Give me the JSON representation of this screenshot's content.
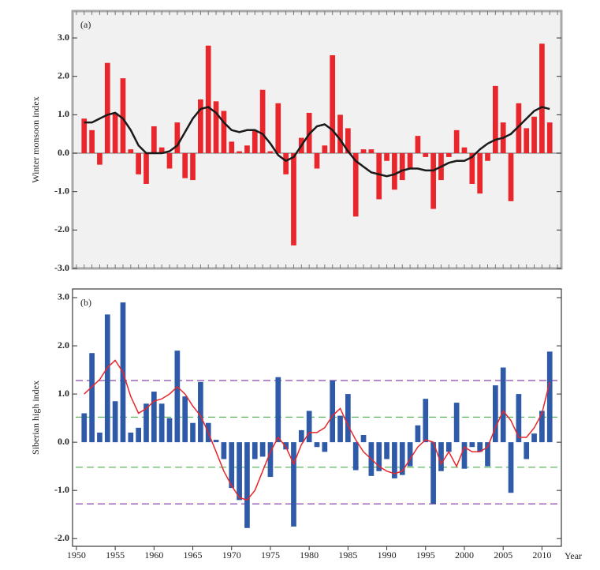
{
  "chart_data": [
    {
      "type": "bar",
      "panel_label": "(a)",
      "ylabel": "Winter monsoon index",
      "x": [
        1951,
        1952,
        1953,
        1954,
        1955,
        1956,
        1957,
        1958,
        1959,
        1960,
        1961,
        1962,
        1963,
        1964,
        1965,
        1966,
        1967,
        1968,
        1969,
        1970,
        1971,
        1972,
        1973,
        1974,
        1975,
        1976,
        1977,
        1978,
        1979,
        1980,
        1981,
        1982,
        1983,
        1984,
        1985,
        1986,
        1987,
        1988,
        1989,
        1990,
        1991,
        1992,
        1993,
        1994,
        1995,
        1996,
        1997,
        1998,
        1999,
        2000,
        2001,
        2002,
        2003,
        2004,
        2005,
        2006,
        2007,
        2008,
        2009,
        2010,
        2011
      ],
      "series": [
        {
          "kind": "bar",
          "color": "#e8262b",
          "values": [
            0.9,
            0.6,
            -0.3,
            2.35,
            1.05,
            1.95,
            0.1,
            -0.55,
            -0.8,
            0.7,
            0.15,
            -0.4,
            0.8,
            -0.65,
            -0.7,
            1.4,
            2.8,
            1.35,
            1.1,
            0.3,
            0.05,
            0.2,
            0.6,
            1.65,
            0.05,
            1.3,
            -0.55,
            -2.4,
            0.4,
            1.05,
            -0.4,
            0.2,
            2.55,
            1.0,
            0.65,
            -1.65,
            0.1,
            0.1,
            -1.2,
            -0.2,
            -0.95,
            -0.7,
            -0.4,
            0.45,
            -0.1,
            -1.45,
            -0.7,
            -0.1,
            0.6,
            0.15,
            -0.8,
            -1.05,
            -0.2,
            1.75,
            0.8,
            -1.25,
            1.3,
            0.65,
            0.95,
            2.85,
            0.8
          ]
        },
        {
          "kind": "line",
          "color": "#1a1a1a",
          "values": [
            0.8,
            0.8,
            0.9,
            1.0,
            1.05,
            0.9,
            0.6,
            0.2,
            0.0,
            0.0,
            0.0,
            0.05,
            0.2,
            0.55,
            0.9,
            1.15,
            1.2,
            1.05,
            0.8,
            0.6,
            0.55,
            0.6,
            0.6,
            0.5,
            0.25,
            -0.05,
            -0.2,
            -0.1,
            0.2,
            0.5,
            0.7,
            0.75,
            0.6,
            0.35,
            0.05,
            -0.2,
            -0.35,
            -0.5,
            -0.55,
            -0.6,
            -0.55,
            -0.45,
            -0.4,
            -0.4,
            -0.45,
            -0.45,
            -0.35,
            -0.25,
            -0.2,
            -0.2,
            -0.1,
            0.1,
            0.25,
            0.35,
            0.4,
            0.5,
            0.7,
            0.9,
            1.1,
            1.2,
            1.15
          ]
        }
      ],
      "xlim": [
        1949.5,
        2012.5
      ],
      "ylim": [
        -3.0,
        3.7
      ],
      "yticks": [
        {
          "value": 3,
          "label": "3.0"
        },
        {
          "value": 2,
          "label": "2.0"
        },
        {
          "value": 1,
          "label": "1.0"
        },
        {
          "value": 0,
          "label": "0.0"
        },
        {
          "value": -1,
          "label": "-1.0"
        },
        {
          "value": -2,
          "label": "-2.0"
        },
        {
          "value": -3,
          "label": "-3.0"
        }
      ]
    },
    {
      "type": "bar",
      "panel_label": "(b)",
      "ylabel": "Siberian high index",
      "xlabel": "Year",
      "x": [
        1951,
        1952,
        1953,
        1954,
        1955,
        1956,
        1957,
        1958,
        1959,
        1960,
        1961,
        1962,
        1963,
        1964,
        1965,
        1966,
        1967,
        1968,
        1969,
        1970,
        1971,
        1972,
        1973,
        1974,
        1975,
        1976,
        1977,
        1978,
        1979,
        1980,
        1981,
        1982,
        1983,
        1984,
        1985,
        1986,
        1987,
        1988,
        1989,
        1990,
        1991,
        1992,
        1993,
        1994,
        1995,
        1996,
        1997,
        1998,
        1999,
        2000,
        2001,
        2002,
        2003,
        2004,
        2005,
        2006,
        2007,
        2008,
        2009,
        2010,
        2011
      ],
      "series": [
        {
          "kind": "bar",
          "color": "#2f5aa8",
          "values": [
            0.6,
            1.85,
            0.2,
            2.65,
            0.85,
            2.9,
            0.2,
            0.3,
            0.8,
            1.05,
            0.8,
            0.5,
            1.9,
            0.95,
            0.4,
            1.25,
            0.4,
            0.05,
            -0.35,
            -0.95,
            -1.2,
            -1.78,
            -0.35,
            -0.3,
            -0.72,
            1.35,
            -0.15,
            -1.75,
            0.25,
            0.65,
            -0.1,
            -0.2,
            1.28,
            0.55,
            1.0,
            -0.58,
            0.15,
            -0.7,
            -0.6,
            -0.35,
            -0.75,
            -0.68,
            -0.5,
            0.35,
            0.9,
            -1.28,
            -0.6,
            -0.2,
            0.82,
            -0.55,
            -0.1,
            -0.2,
            -0.5,
            1.18,
            1.55,
            -1.05,
            1.0,
            -0.35,
            0.18,
            0.65,
            1.88
          ]
        },
        {
          "kind": "line",
          "color": "#e8262b",
          "values": [
            1.0,
            1.15,
            1.3,
            1.55,
            1.7,
            1.45,
            0.95,
            0.6,
            0.7,
            0.85,
            0.9,
            1.0,
            1.15,
            1.0,
            0.75,
            0.55,
            0.2,
            -0.2,
            -0.6,
            -0.9,
            -1.15,
            -1.2,
            -1.0,
            -0.6,
            -0.2,
            0.1,
            -0.1,
            -0.45,
            -0.05,
            0.2,
            0.2,
            0.3,
            0.55,
            0.7,
            0.35,
            0.05,
            -0.2,
            -0.35,
            -0.5,
            -0.6,
            -0.65,
            -0.6,
            -0.35,
            -0.1,
            0.05,
            0.0,
            -0.45,
            -0.2,
            -0.5,
            -0.1,
            -0.2,
            -0.2,
            -0.1,
            0.3,
            0.65,
            0.45,
            0.1,
            0.1,
            0.3,
            0.6,
            1.25
          ]
        }
      ],
      "reference_lines": [
        {
          "value": 1.28,
          "color": "#8e44ad"
        },
        {
          "value": 0.52,
          "color": "#5cb85c"
        },
        {
          "value": -0.52,
          "color": "#5cb85c"
        },
        {
          "value": -1.28,
          "color": "#8e44ad"
        }
      ],
      "xlim": [
        1949.5,
        2012.5
      ],
      "ylim": [
        -2.16,
        3.18
      ],
      "xticks": [
        1950,
        1955,
        1960,
        1965,
        1970,
        1975,
        1980,
        1985,
        1990,
        1995,
        2000,
        2005,
        2010
      ],
      "yticks": [
        {
          "value": 3,
          "label": "3.0"
        },
        {
          "value": 2,
          "label": "2.0"
        },
        {
          "value": 1,
          "label": "1.0"
        },
        {
          "value": 0,
          "label": "0.0"
        },
        {
          "value": -1,
          "label": "-1.0"
        },
        {
          "value": -2,
          "label": "-2.0"
        }
      ]
    }
  ]
}
